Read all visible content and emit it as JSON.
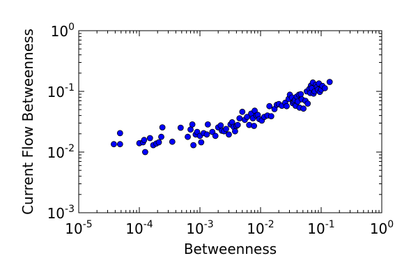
{
  "chart_data": {
    "type": "scatter",
    "title": "",
    "xlabel": "Betweenness",
    "ylabel": "Current Flow Betweenness",
    "xscale": "log",
    "yscale": "log",
    "xlim": [
      1e-05,
      1
    ],
    "ylim": [
      0.001,
      1
    ],
    "x_ticks": [
      {
        "base": "10",
        "exp": "-5"
      },
      {
        "base": "10",
        "exp": "-4"
      },
      {
        "base": "10",
        "exp": "-3"
      },
      {
        "base": "10",
        "exp": "-2"
      },
      {
        "base": "10",
        "exp": "-1"
      },
      {
        "base": "10",
        "exp": "0"
      }
    ],
    "y_ticks": [
      {
        "base": "10",
        "exp": "-3"
      },
      {
        "base": "10",
        "exp": "-2"
      },
      {
        "base": "10",
        "exp": "-1"
      },
      {
        "base": "10",
        "exp": "0"
      }
    ],
    "grid": false,
    "legend": "none",
    "marker_color": "#0000ff",
    "marker_edge_color": "#000000",
    "points": [
      [
        3.8e-05,
        0.0135
      ],
      [
        4.8e-05,
        0.0135
      ],
      [
        4.8e-05,
        0.0205
      ],
      [
        0.0001,
        0.014
      ],
      [
        0.000115,
        0.0145
      ],
      [
        0.00012,
        0.0158
      ],
      [
        0.000125,
        0.01
      ],
      [
        0.00015,
        0.017
      ],
      [
        0.00017,
        0.013
      ],
      [
        0.00019,
        0.0138
      ],
      [
        0.00021,
        0.0145
      ],
      [
        0.00023,
        0.0178
      ],
      [
        0.00024,
        0.0255
      ],
      [
        0.00035,
        0.0148
      ],
      [
        0.00048,
        0.0252
      ],
      [
        0.00063,
        0.0178
      ],
      [
        0.0007,
        0.0235
      ],
      [
        0.00075,
        0.0285
      ],
      [
        0.00078,
        0.013
      ],
      [
        0.00085,
        0.0195
      ],
      [
        0.0009,
        0.0215
      ],
      [
        0.001,
        0.0185
      ],
      [
        0.00105,
        0.0145
      ],
      [
        0.00115,
        0.0205
      ],
      [
        0.0013,
        0.0195
      ],
      [
        0.00135,
        0.0285
      ],
      [
        0.0016,
        0.0215
      ],
      [
        0.0018,
        0.0185
      ],
      [
        0.002,
        0.0255
      ],
      [
        0.0022,
        0.0275
      ],
      [
        0.0023,
        0.0225
      ],
      [
        0.0025,
        0.022
      ],
      [
        0.0027,
        0.024
      ],
      [
        0.003,
        0.0195
      ],
      [
        0.0032,
        0.0285
      ],
      [
        0.0034,
        0.031
      ],
      [
        0.0036,
        0.026
      ],
      [
        0.0038,
        0.022
      ],
      [
        0.004,
        0.027
      ],
      [
        0.0042,
        0.028
      ],
      [
        0.0045,
        0.036
      ],
      [
        0.005,
        0.046
      ],
      [
        0.0055,
        0.034
      ],
      [
        0.006,
        0.038
      ],
      [
        0.0065,
        0.028
      ],
      [
        0.007,
        0.043
      ],
      [
        0.0075,
        0.036
      ],
      [
        0.0078,
        0.027
      ],
      [
        0.008,
        0.048
      ],
      [
        0.0085,
        0.04
      ],
      [
        0.009,
        0.041
      ],
      [
        0.0095,
        0.035
      ],
      [
        0.0105,
        0.033
      ],
      [
        0.0115,
        0.038
      ],
      [
        0.013,
        0.04
      ],
      [
        0.014,
        0.057
      ],
      [
        0.015,
        0.039
      ],
      [
        0.017,
        0.051
      ],
      [
        0.0185,
        0.06
      ],
      [
        0.02,
        0.062
      ],
      [
        0.0225,
        0.058
      ],
      [
        0.0255,
        0.065
      ],
      [
        0.027,
        0.057
      ],
      [
        0.029,
        0.075
      ],
      [
        0.0305,
        0.088
      ],
      [
        0.033,
        0.079
      ],
      [
        0.034,
        0.064
      ],
      [
        0.0355,
        0.068
      ],
      [
        0.037,
        0.072
      ],
      [
        0.038,
        0.058
      ],
      [
        0.0395,
        0.082
      ],
      [
        0.041,
        0.068
      ],
      [
        0.043,
        0.088
      ],
      [
        0.044,
        0.054
      ],
      [
        0.046,
        0.09
      ],
      [
        0.048,
        0.074
      ],
      [
        0.051,
        0.052
      ],
      [
        0.055,
        0.07
      ],
      [
        0.058,
        0.1
      ],
      [
        0.06,
        0.063
      ],
      [
        0.064,
        0.11
      ],
      [
        0.066,
        0.094
      ],
      [
        0.068,
        0.125
      ],
      [
        0.07,
        0.113
      ],
      [
        0.073,
        0.14
      ],
      [
        0.075,
        0.092
      ],
      [
        0.078,
        0.1
      ],
      [
        0.082,
        0.128
      ],
      [
        0.085,
        0.118
      ],
      [
        0.088,
        0.107
      ],
      [
        0.092,
        0.135
      ],
      [
        0.095,
        0.098
      ],
      [
        0.1,
        0.107
      ],
      [
        0.105,
        0.123
      ],
      [
        0.115,
        0.113
      ],
      [
        0.138,
        0.143
      ]
    ]
  }
}
